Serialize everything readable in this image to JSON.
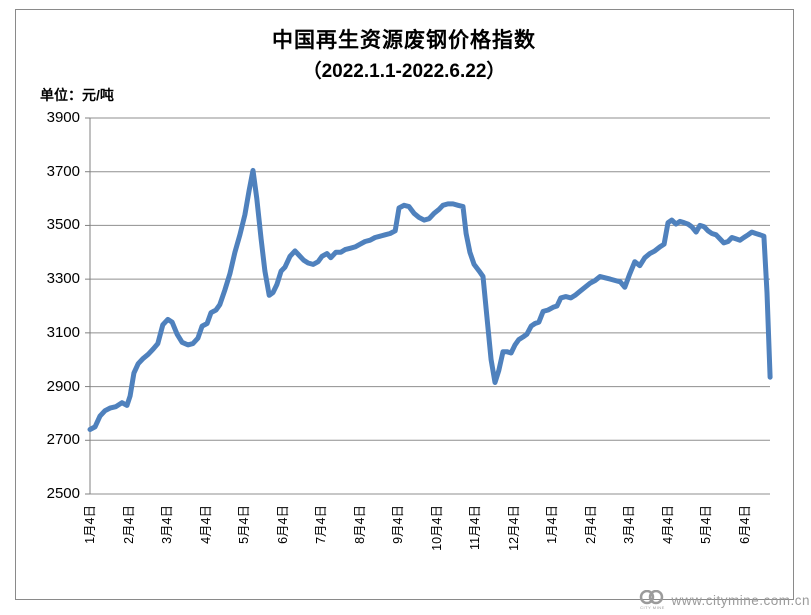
{
  "header": {
    "title": "中国再生资源废钢价格指数",
    "subtitle": "（2022.1.1-2022.6.22）",
    "unit_label": "单位：元/吨"
  },
  "watermark": {
    "logo_caption": "CITY MINE",
    "url_text": "www.citymine.com.cn"
  },
  "colors": {
    "line": "#4F81BD",
    "grid": "#8f8f8f",
    "axis": "#808080",
    "frame": "#8a8a8a",
    "watermark": "#9b9b9b",
    "text": "#000000"
  },
  "chart_data": {
    "type": "line",
    "title": "中国再生资源废钢价格指数",
    "subtitle": "（2022.1.1-2022.6.22）",
    "ylabel": "单位：元/吨",
    "ylim": [
      2500,
      3900
    ],
    "y_ticks": [
      3900,
      3700,
      3500,
      3300,
      3100,
      2900,
      2700,
      2500
    ],
    "x_tick_labels": [
      "1月4日",
      "2月4日",
      "3月4日",
      "4月4日",
      "5月4日",
      "6月4日",
      "7月4日",
      "8月4日",
      "9月4日",
      "10月4日",
      "11月4日",
      "12月4日",
      "1月4日",
      "2月4日",
      "3月4日",
      "4月4日",
      "5月4日",
      "6月4日"
    ],
    "x_note": "ticks 1月4日–12月4日 = 2021, final 1月4日–6月4日 = 2022; x of points = months after first tick",
    "grid": true,
    "legend": false,
    "series": [
      {
        "name": "废钢价格指数(元/吨)",
        "points": [
          [
            0.0,
            2740
          ],
          [
            0.13,
            2750
          ],
          [
            0.26,
            2790
          ],
          [
            0.39,
            2810
          ],
          [
            0.52,
            2820
          ],
          [
            0.67,
            2825
          ],
          [
            0.83,
            2840
          ],
          [
            0.96,
            2830
          ],
          [
            1.04,
            2865
          ],
          [
            1.14,
            2950
          ],
          [
            1.25,
            2985
          ],
          [
            1.38,
            3005
          ],
          [
            1.51,
            3020
          ],
          [
            1.64,
            3040
          ],
          [
            1.76,
            3060
          ],
          [
            1.89,
            3130
          ],
          [
            2.02,
            3150
          ],
          [
            2.13,
            3140
          ],
          [
            2.26,
            3095
          ],
          [
            2.39,
            3065
          ],
          [
            2.54,
            3055
          ],
          [
            2.67,
            3060
          ],
          [
            2.8,
            3080
          ],
          [
            2.91,
            3125
          ],
          [
            3.04,
            3135
          ],
          [
            3.14,
            3175
          ],
          [
            3.27,
            3185
          ],
          [
            3.37,
            3205
          ],
          [
            3.5,
            3260
          ],
          [
            3.63,
            3320
          ],
          [
            3.76,
            3400
          ],
          [
            3.89,
            3465
          ],
          [
            4.02,
            3540
          ],
          [
            4.13,
            3630
          ],
          [
            4.23,
            3705
          ],
          [
            4.33,
            3600
          ],
          [
            4.44,
            3450
          ],
          [
            4.54,
            3330
          ],
          [
            4.65,
            3240
          ],
          [
            4.75,
            3250
          ],
          [
            4.85,
            3280
          ],
          [
            4.96,
            3330
          ],
          [
            5.06,
            3345
          ],
          [
            5.19,
            3385
          ],
          [
            5.32,
            3405
          ],
          [
            5.42,
            3390
          ],
          [
            5.55,
            3370
          ],
          [
            5.66,
            3360
          ],
          [
            5.79,
            3355
          ],
          [
            5.92,
            3365
          ],
          [
            6.02,
            3385
          ],
          [
            6.15,
            3395
          ],
          [
            6.25,
            3380
          ],
          [
            6.38,
            3400
          ],
          [
            6.51,
            3400
          ],
          [
            6.62,
            3410
          ],
          [
            6.75,
            3415
          ],
          [
            6.88,
            3420
          ],
          [
            7.01,
            3430
          ],
          [
            7.14,
            3440
          ],
          [
            7.27,
            3445
          ],
          [
            7.4,
            3455
          ],
          [
            7.53,
            3460
          ],
          [
            7.66,
            3465
          ],
          [
            7.79,
            3470
          ],
          [
            7.92,
            3480
          ],
          [
            8.02,
            3565
          ],
          [
            8.15,
            3575
          ],
          [
            8.28,
            3570
          ],
          [
            8.41,
            3545
          ],
          [
            8.54,
            3530
          ],
          [
            8.67,
            3520
          ],
          [
            8.8,
            3525
          ],
          [
            8.93,
            3545
          ],
          [
            9.06,
            3560
          ],
          [
            9.16,
            3575
          ],
          [
            9.29,
            3580
          ],
          [
            9.42,
            3580
          ],
          [
            9.55,
            3575
          ],
          [
            9.68,
            3570
          ],
          [
            9.76,
            3470
          ],
          [
            9.86,
            3400
          ],
          [
            9.97,
            3355
          ],
          [
            10.1,
            3330
          ],
          [
            10.2,
            3310
          ],
          [
            10.3,
            3160
          ],
          [
            10.41,
            3000
          ],
          [
            10.51,
            2915
          ],
          [
            10.61,
            2960
          ],
          [
            10.72,
            3030
          ],
          [
            10.82,
            3030
          ],
          [
            10.93,
            3025
          ],
          [
            11.03,
            3055
          ],
          [
            11.13,
            3075
          ],
          [
            11.24,
            3085
          ],
          [
            11.34,
            3095
          ],
          [
            11.45,
            3125
          ],
          [
            11.55,
            3135
          ],
          [
            11.65,
            3140
          ],
          [
            11.76,
            3180
          ],
          [
            11.89,
            3185
          ],
          [
            12.02,
            3195
          ],
          [
            12.12,
            3200
          ],
          [
            12.22,
            3230
          ],
          [
            12.35,
            3235
          ],
          [
            12.48,
            3230
          ],
          [
            12.59,
            3240
          ],
          [
            12.72,
            3255
          ],
          [
            12.85,
            3270
          ],
          [
            12.98,
            3285
          ],
          [
            13.11,
            3295
          ],
          [
            13.24,
            3310
          ],
          [
            13.37,
            3305
          ],
          [
            13.5,
            3300
          ],
          [
            13.63,
            3295
          ],
          [
            13.76,
            3290
          ],
          [
            13.88,
            3270
          ],
          [
            14.01,
            3320
          ],
          [
            14.14,
            3365
          ],
          [
            14.27,
            3350
          ],
          [
            14.4,
            3380
          ],
          [
            14.53,
            3395
          ],
          [
            14.66,
            3405
          ],
          [
            14.79,
            3420
          ],
          [
            14.9,
            3430
          ],
          [
            15.0,
            3510
          ],
          [
            15.1,
            3520
          ],
          [
            15.21,
            3505
          ],
          [
            15.31,
            3515
          ],
          [
            15.42,
            3510
          ],
          [
            15.52,
            3505
          ],
          [
            15.62,
            3495
          ],
          [
            15.73,
            3475
          ],
          [
            15.83,
            3500
          ],
          [
            15.94,
            3495
          ],
          [
            16.04,
            3480
          ],
          [
            16.14,
            3470
          ],
          [
            16.25,
            3465
          ],
          [
            16.35,
            3450
          ],
          [
            16.45,
            3435
          ],
          [
            16.56,
            3440
          ],
          [
            16.66,
            3455
          ],
          [
            16.77,
            3450
          ],
          [
            16.87,
            3445
          ],
          [
            16.97,
            3455
          ],
          [
            17.08,
            3465
          ],
          [
            17.18,
            3475
          ],
          [
            17.28,
            3470
          ],
          [
            17.39,
            3465
          ],
          [
            17.49,
            3460
          ],
          [
            17.57,
            3250
          ],
          [
            17.65,
            2935
          ]
        ]
      }
    ]
  }
}
